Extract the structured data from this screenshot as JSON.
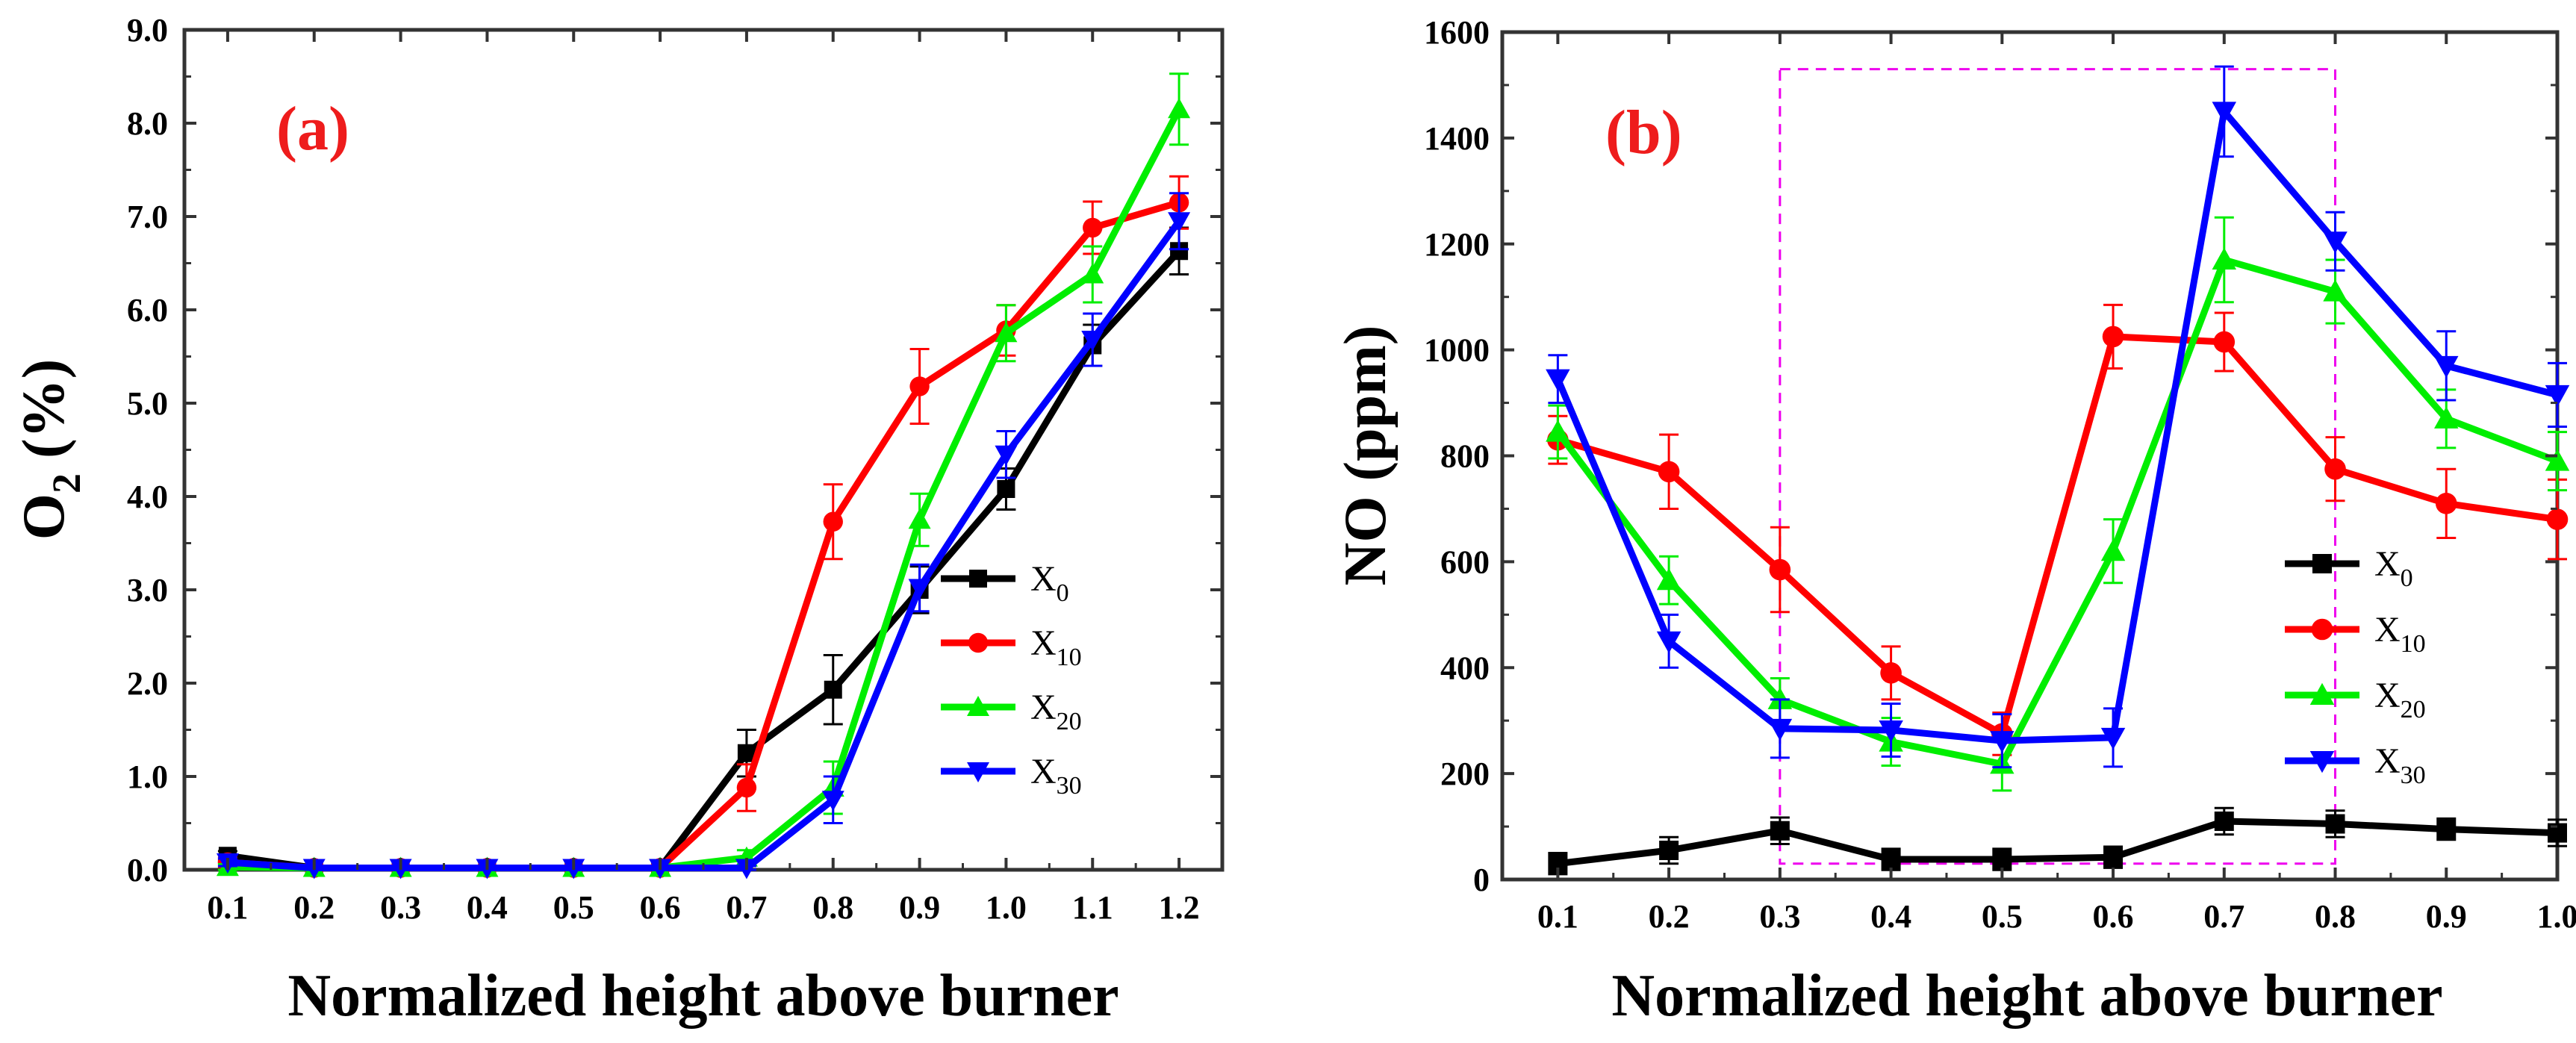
{
  "colors": {
    "X0": "#000000",
    "X10": "#ff0000",
    "X20": "#00ee00",
    "X30": "#0000ff",
    "panel_label": "#ee1c1c",
    "highlight_box": "#ee00ee",
    "axis": "#333333"
  },
  "chart_data": [
    {
      "type": "line",
      "panel_label": "(a)",
      "xlabel": "Normalized height above burner",
      "ylabel_main": "O",
      "ylabel_sub": "2",
      "ylabel_tail": " (%)",
      "xlim": [
        0.05,
        1.25
      ],
      "ylim": [
        0,
        9
      ],
      "x_ticks": [
        0.1,
        0.2,
        0.3,
        0.4,
        0.5,
        0.6,
        0.7,
        0.8,
        0.9,
        1.0,
        1.1,
        1.2
      ],
      "x_tick_labels": [
        "0.1",
        "0.2",
        "0.3",
        "0.4",
        "0.5",
        "0.6",
        "0.7",
        "0.8",
        "0.9",
        "1.0",
        "1.1",
        "1.2"
      ],
      "y_ticks": [
        0,
        1,
        2,
        3,
        4,
        5,
        6,
        7,
        8,
        9
      ],
      "y_tick_labels": [
        "0.0",
        "1.0",
        "2.0",
        "3.0",
        "4.0",
        "5.0",
        "6.0",
        "7.0",
        "8.0",
        "9.0"
      ],
      "legend_position": "lower-right",
      "grid": false,
      "x": [
        0.1,
        0.2,
        0.3,
        0.4,
        0.5,
        0.6,
        0.7,
        0.8,
        0.9,
        1.0,
        1.1,
        1.2
      ],
      "series": [
        {
          "name": "X0",
          "label_main": "X",
          "label_sub": "0",
          "marker": "square",
          "color_key": "X0",
          "values": [
            0.15,
            0.02,
            0.02,
            0.02,
            0.02,
            0.02,
            1.25,
            1.93,
            3.0,
            4.08,
            5.62,
            6.63
          ],
          "errors": [
            0.05,
            0.02,
            0.02,
            0.02,
            0.02,
            0.02,
            0.25,
            0.37,
            0.25,
            0.22,
            0.22,
            0.25
          ]
        },
        {
          "name": "X10",
          "label_main": "X",
          "label_sub": "10",
          "marker": "circle",
          "color_key": "X10",
          "values": [
            0.08,
            0.02,
            0.02,
            0.02,
            0.02,
            0.02,
            0.88,
            3.73,
            5.18,
            5.78,
            6.88,
            7.15
          ],
          "errors": [
            0.05,
            0.02,
            0.02,
            0.02,
            0.02,
            0.02,
            0.25,
            0.4,
            0.4,
            0.27,
            0.28,
            0.28
          ]
        },
        {
          "name": "X20",
          "label_main": "X",
          "label_sub": "20",
          "marker": "triangle-up",
          "color_key": "X20",
          "values": [
            0.03,
            0.02,
            0.02,
            0.02,
            0.02,
            0.02,
            0.13,
            0.88,
            3.75,
            5.75,
            6.38,
            8.15
          ],
          "errors": [
            0.03,
            0.02,
            0.02,
            0.02,
            0.02,
            0.02,
            0.08,
            0.28,
            0.28,
            0.3,
            0.3,
            0.38
          ]
        },
        {
          "name": "X30",
          "label_main": "X",
          "label_sub": "30",
          "marker": "triangle-down",
          "color_key": "X30",
          "values": [
            0.08,
            0.02,
            0.02,
            0.02,
            0.02,
            0.02,
            0.02,
            0.75,
            3.02,
            4.45,
            5.68,
            6.95
          ],
          "errors": [
            0.04,
            0.02,
            0.02,
            0.02,
            0.02,
            0.02,
            0.02,
            0.25,
            0.25,
            0.25,
            0.28,
            0.3
          ]
        }
      ]
    },
    {
      "type": "line",
      "panel_label": "(b)",
      "xlabel": "Normalized height above burner",
      "ylabel_main": "NO (ppm)",
      "xlim": [
        0.05,
        1.0
      ],
      "ylim": [
        0,
        1600
      ],
      "x_ticks": [
        0.1,
        0.2,
        0.3,
        0.4,
        0.5,
        0.6,
        0.7,
        0.8,
        0.9,
        1.0
      ],
      "x_tick_labels": [
        "0.1",
        "0.2",
        "0.3",
        "0.4",
        "0.5",
        "0.6",
        "0.7",
        "0.8",
        "0.9",
        "1.0"
      ],
      "y_ticks": [
        0,
        200,
        400,
        600,
        800,
        1000,
        1200,
        1400,
        1600
      ],
      "y_tick_labels": [
        "0",
        "200",
        "400",
        "600",
        "800",
        "1000",
        "1200",
        "1400",
        "1600"
      ],
      "legend_position": "lower-right",
      "grid": false,
      "highlight_box": {
        "x_range": [
          0.3,
          0.8
        ],
        "y_range": [
          30,
          1530
        ],
        "style": "dashed"
      },
      "x": [
        0.1,
        0.2,
        0.3,
        0.4,
        0.5,
        0.6,
        0.7,
        0.8,
        0.9,
        1.0
      ],
      "series": [
        {
          "name": "X0",
          "label_main": "X",
          "label_sub": "0",
          "marker": "square",
          "color_key": "X0",
          "values": [
            30,
            55,
            92,
            38,
            38,
            42,
            110,
            105,
            95,
            88
          ],
          "errors": [
            20,
            25,
            25,
            20,
            20,
            20,
            25,
            25,
            20,
            25
          ]
        },
        {
          "name": "X10",
          "label_main": "X",
          "label_sub": "10",
          "marker": "circle",
          "color_key": "X10",
          "values": [
            830,
            770,
            585,
            390,
            275,
            1025,
            1015,
            775,
            710,
            680
          ],
          "errors": [
            45,
            70,
            80,
            50,
            40,
            60,
            55,
            60,
            65,
            75
          ]
        },
        {
          "name": "X20",
          "label_main": "X",
          "label_sub": "20",
          "marker": "triangle-up",
          "color_key": "X20",
          "values": [
            845,
            565,
            340,
            260,
            218,
            620,
            1170,
            1110,
            870,
            790
          ],
          "errors": [
            50,
            45,
            40,
            45,
            50,
            60,
            80,
            60,
            55,
            55
          ]
        },
        {
          "name": "X30",
          "label_main": "X",
          "label_sub": "30",
          "marker": "triangle-down",
          "color_key": "X30",
          "values": [
            945,
            450,
            285,
            282,
            262,
            268,
            1450,
            1205,
            970,
            915
          ],
          "errors": [
            45,
            50,
            55,
            50,
            50,
            55,
            85,
            55,
            65,
            60
          ]
        }
      ]
    }
  ]
}
